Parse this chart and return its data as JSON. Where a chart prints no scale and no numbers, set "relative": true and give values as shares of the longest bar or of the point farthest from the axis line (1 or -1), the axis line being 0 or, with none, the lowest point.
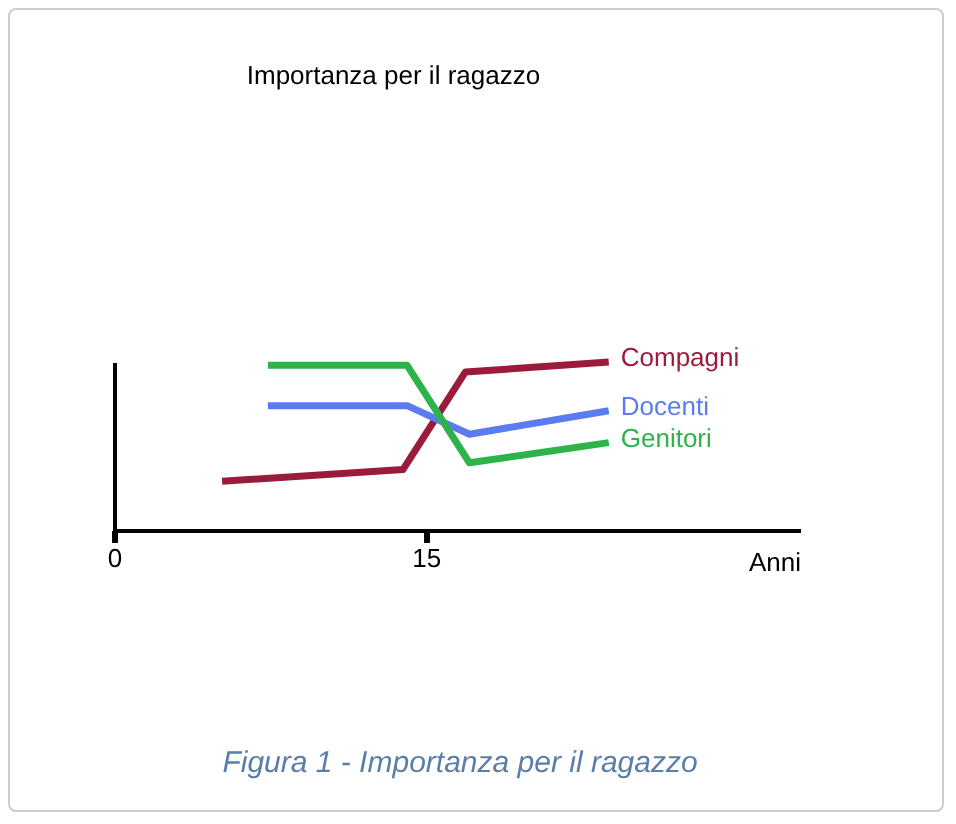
{
  "chart_data": {
    "type": "line",
    "title": "Importanza per il ragazzo",
    "xlabel": "Anni",
    "annotations": [
      "Figura 1 - Importanza per il ragazzo"
    ],
    "relative": true,
    "xlim": [
      0,
      33
    ],
    "xticks": [
      0,
      15
    ],
    "legend": false,
    "grid": false,
    "marker": "none",
    "line_style": "solid",
    "series": [
      {
        "name": "Compagni",
        "color": "#9b1b3d",
        "x": [
          5.2,
          13.9,
          16.9,
          23.8
        ],
        "values": [
          0.29,
          0.36,
          0.94,
          1
        ]
      },
      {
        "name": "Docenti",
        "color": "#5b7cf0",
        "x": [
          7.4,
          14.1,
          17.1,
          23.8
        ],
        "values": [
          0.74,
          0.74,
          0.57,
          0.71
        ]
      },
      {
        "name": "Genitori",
        "color": "#2db34a",
        "x": [
          7.4,
          14.1,
          17.1,
          23.8
        ],
        "values": [
          0.98,
          0.98,
          0.4,
          0.52
        ]
      }
    ]
  }
}
